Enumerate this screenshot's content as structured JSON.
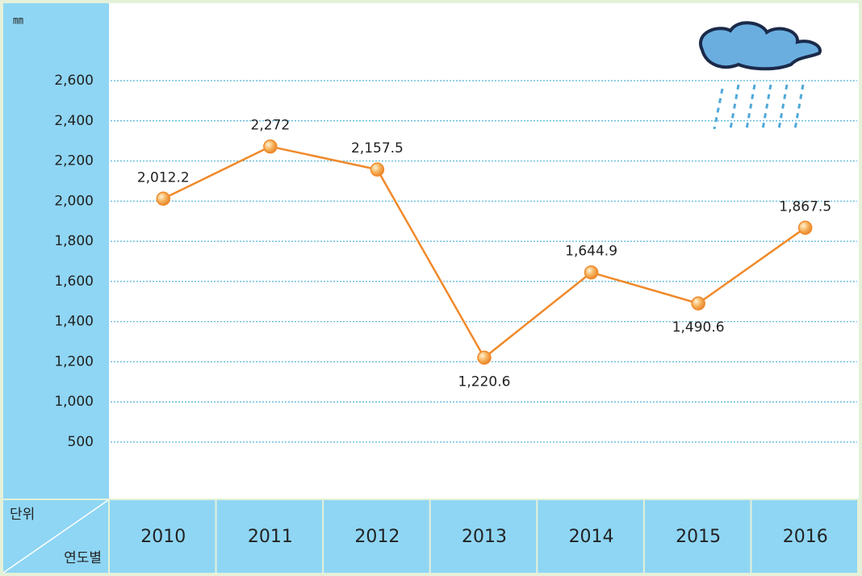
{
  "chart_data": {
    "type": "line",
    "y_unit": "㎜",
    "corner_top": "단위",
    "corner_bottom": "연도별",
    "categories": [
      "2010",
      "2011",
      "2012",
      "2013",
      "2014",
      "2015",
      "2016"
    ],
    "series": [
      {
        "color": "#f0892a",
        "values": [
          2012.2,
          2272,
          2157.5,
          1220.6,
          1644.9,
          1490.6,
          1867.5
        ],
        "value_labels": [
          "2,012.2",
          "2,272",
          "2,157.5",
          "1,220.6",
          "1,644.9",
          "1,490.6",
          "1,867.5"
        ]
      }
    ],
    "ylim": [
      500,
      2600
    ],
    "yticks": [
      500,
      {
        "value": 1000,
        "label": "1,000"
      },
      {
        "value": 1200,
        "label": "1,200"
      },
      {
        "value": 1400,
        "label": "1,400"
      },
      {
        "value": 1600,
        "label": "1,600"
      },
      {
        "value": 1800,
        "label": "1,800"
      },
      {
        "value": 2000,
        "label": "2,000"
      },
      {
        "value": 2200,
        "label": "2,200"
      },
      {
        "value": 2400,
        "label": "2,400"
      },
      {
        "value": 2600,
        "label": "2,600"
      }
    ],
    "grid": true
  }
}
